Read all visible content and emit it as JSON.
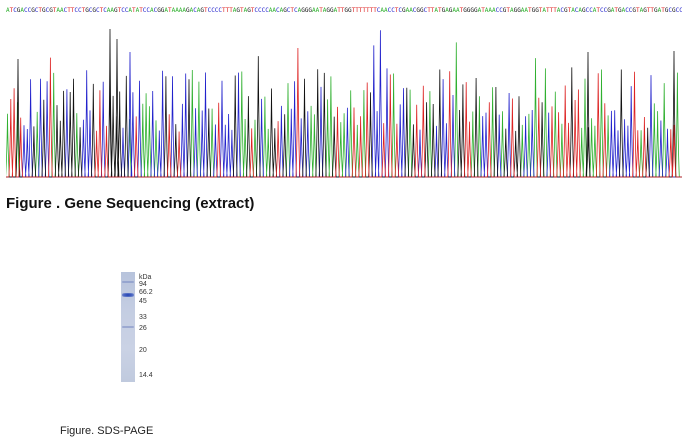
{
  "sequencing": {
    "caption": "Figure . Gene Sequencing (extract)",
    "base_colors": {
      "A": "#2fb02f",
      "C": "#2222cc",
      "G": "#111111",
      "T": "#dd2222"
    }
  },
  "gel": {
    "caption": "Figure. SDS-PAGE",
    "unit": "kDa",
    "markers": [
      "94",
      "66.2",
      "45",
      "33",
      "26",
      "20",
      "14.4"
    ],
    "lane_color": "#c4cde2",
    "band_color": "#2a46b8"
  }
}
